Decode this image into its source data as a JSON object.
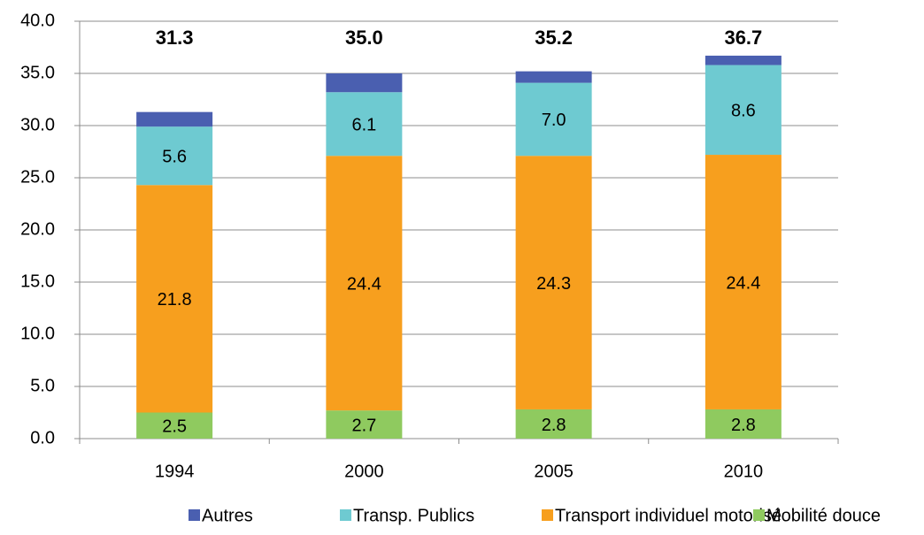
{
  "chart_data": {
    "type": "stacked_bar",
    "categories": [
      "1994",
      "2000",
      "2005",
      "2010"
    ],
    "series": [
      {
        "name": "Autres",
        "color": "#4a5fb0",
        "values": [
          1.4,
          1.8,
          1.1,
          0.9
        ]
      },
      {
        "name": "Transp. Publics",
        "color": "#6ecad1",
        "values": [
          5.6,
          6.1,
          7.0,
          8.6
        ],
        "value_labels": [
          "5.6",
          "6.1",
          "7.0",
          "8.6"
        ]
      },
      {
        "name": "Transport individuel motorisé",
        "color": "#f79f1e",
        "values": [
          21.8,
          24.4,
          24.3,
          24.4
        ],
        "value_labels": [
          "21.8",
          "24.4",
          "24.3",
          "24.4"
        ]
      },
      {
        "name": "Mobilité douce",
        "color": "#8fca5f",
        "values": [
          2.5,
          2.7,
          2.8,
          2.8
        ],
        "value_labels": [
          "2.5",
          "2.7",
          "2.8",
          "2.8"
        ]
      }
    ],
    "totals": [
      31.3,
      35.0,
      35.2,
      36.7
    ],
    "total_labels": [
      "31.3",
      "35.0",
      "35.2",
      "36.7"
    ],
    "ylim": [
      0,
      40
    ],
    "yticks": [
      {
        "value": 0,
        "label": "0.0"
      },
      {
        "value": 5,
        "label": "5.0"
      },
      {
        "value": 10,
        "label": "10.0"
      },
      {
        "value": 15,
        "label": "15.0"
      },
      {
        "value": 20,
        "label": "20.0"
      },
      {
        "value": 25,
        "label": "25.0"
      },
      {
        "value": 30,
        "label": "30.0"
      },
      {
        "value": 35,
        "label": "35.0"
      },
      {
        "value": 40,
        "label": "40.0"
      }
    ],
    "grid": true,
    "legend": "bottom"
  }
}
